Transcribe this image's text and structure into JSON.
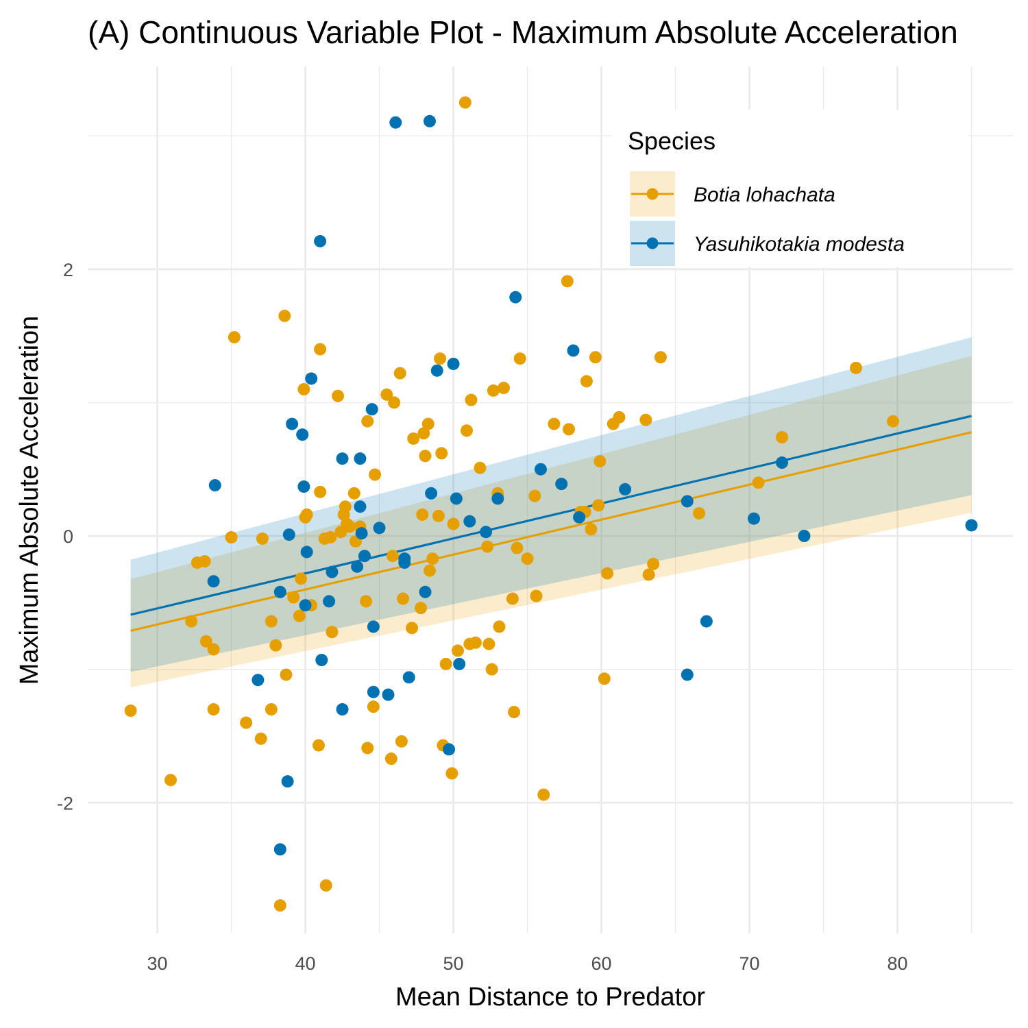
{
  "chart_data": {
    "type": "scatter",
    "title": "(A) Continuous Variable Plot - Maximum Absolute Acceleration",
    "xlabel": "Mean Distance to Predator",
    "ylabel": "Maximum Absolute Acceleration",
    "xlim": [
      25.3,
      87.8
    ],
    "ylim": [
      -2.98,
      3.52
    ],
    "x_ticks": [
      30,
      40,
      50,
      60,
      70,
      80
    ],
    "y_ticks": [
      -2,
      0,
      2
    ],
    "x_tick_labels": [
      "30",
      "40",
      "50",
      "60",
      "70",
      "80"
    ],
    "y_tick_labels": [
      "-2",
      "0",
      "2"
    ],
    "grid": true,
    "legend": {
      "title": "Species",
      "position": "top-right"
    },
    "series": [
      {
        "name": "Botia lohachata",
        "color": "#E69F00",
        "fit": {
          "x_range": [
            28.2,
            85
          ],
          "intercept": -1.45,
          "slope": 0.02621
        },
        "band": {
          "x": [
            28.2,
            85
          ],
          "lower": [
            -1.135,
            0.174
          ],
          "upper": [
            -0.324,
            1.35
          ]
        },
        "points": [
          [
            28.2,
            -1.31
          ],
          [
            30.9,
            -1.83
          ],
          [
            32.3,
            -0.64
          ],
          [
            32.7,
            -0.2
          ],
          [
            33.2,
            -0.19
          ],
          [
            33.3,
            -0.79
          ],
          [
            33.8,
            -0.85
          ],
          [
            33.8,
            -1.3
          ],
          [
            35.0,
            -0.01
          ],
          [
            35.2,
            1.49
          ],
          [
            36.0,
            -1.4
          ],
          [
            37.0,
            -1.52
          ],
          [
            37.1,
            -0.02
          ],
          [
            37.7,
            -0.64
          ],
          [
            37.7,
            -1.3
          ],
          [
            38.0,
            -0.82
          ],
          [
            38.3,
            -2.77
          ],
          [
            38.6,
            1.65
          ],
          [
            38.7,
            -1.04
          ],
          [
            39.2,
            -0.46
          ],
          [
            39.6,
            -0.6
          ],
          [
            39.7,
            -0.32
          ],
          [
            39.9,
            1.1
          ],
          [
            40.0,
            0.14
          ],
          [
            40.1,
            0.16
          ],
          [
            40.4,
            -0.52
          ],
          [
            40.9,
            -1.57
          ],
          [
            41.0,
            0.33
          ],
          [
            41.0,
            1.4
          ],
          [
            41.3,
            -0.02
          ],
          [
            41.4,
            -2.62
          ],
          [
            41.7,
            -0.01
          ],
          [
            41.8,
            -0.72
          ],
          [
            42.2,
            1.05
          ],
          [
            42.4,
            0.03
          ],
          [
            42.6,
            0.16
          ],
          [
            42.7,
            0.22
          ],
          [
            42.8,
            0.09
          ],
          [
            43.0,
            0.07
          ],
          [
            43.3,
            0.32
          ],
          [
            43.4,
            -0.04
          ],
          [
            43.7,
            0.07
          ],
          [
            44.1,
            -0.49
          ],
          [
            44.2,
            -1.59
          ],
          [
            44.2,
            0.86
          ],
          [
            44.6,
            -1.28
          ],
          [
            44.7,
            0.46
          ],
          [
            45.5,
            1.06
          ],
          [
            45.8,
            -1.67
          ],
          [
            45.9,
            -0.15
          ],
          [
            46.0,
            1.0
          ],
          [
            46.4,
            1.22
          ],
          [
            46.5,
            -1.54
          ],
          [
            46.6,
            -0.47
          ],
          [
            47.2,
            -0.69
          ],
          [
            47.3,
            0.73
          ],
          [
            47.8,
            -0.54
          ],
          [
            47.9,
            0.16
          ],
          [
            48.0,
            0.77
          ],
          [
            48.1,
            0.6
          ],
          [
            48.3,
            0.84
          ],
          [
            48.4,
            -0.26
          ],
          [
            48.6,
            -0.17
          ],
          [
            49.0,
            0.15
          ],
          [
            49.1,
            1.33
          ],
          [
            49.2,
            0.62
          ],
          [
            49.3,
            -1.57
          ],
          [
            49.5,
            -0.96
          ],
          [
            49.9,
            -1.78
          ],
          [
            50.0,
            0.09
          ],
          [
            50.3,
            -0.86
          ],
          [
            50.8,
            3.25
          ],
          [
            50.9,
            0.79
          ],
          [
            51.1,
            -0.81
          ],
          [
            51.2,
            1.02
          ],
          [
            51.5,
            -0.8
          ],
          [
            51.8,
            0.51
          ],
          [
            52.3,
            -0.08
          ],
          [
            52.4,
            -0.81
          ],
          [
            52.6,
            -1.0
          ],
          [
            52.7,
            1.09
          ],
          [
            53.0,
            0.32
          ],
          [
            53.1,
            -0.68
          ],
          [
            53.4,
            1.11
          ],
          [
            54.0,
            -0.47
          ],
          [
            54.1,
            -1.32
          ],
          [
            54.3,
            -0.09
          ],
          [
            54.5,
            1.33
          ],
          [
            55.0,
            -0.17
          ],
          [
            55.5,
            0.3
          ],
          [
            55.6,
            -0.45
          ],
          [
            56.1,
            -1.94
          ],
          [
            56.8,
            0.84
          ],
          [
            57.7,
            1.91
          ],
          [
            57.8,
            0.8
          ],
          [
            58.6,
            0.18
          ],
          [
            58.9,
            0.18
          ],
          [
            59.0,
            1.16
          ],
          [
            59.3,
            0.05
          ],
          [
            59.6,
            1.34
          ],
          [
            59.8,
            0.23
          ],
          [
            59.9,
            0.56
          ],
          [
            60.2,
            -1.07
          ],
          [
            60.4,
            -0.28
          ],
          [
            60.8,
            0.84
          ],
          [
            61.2,
            0.89
          ],
          [
            63.0,
            0.87
          ],
          [
            63.2,
            -0.29
          ],
          [
            63.5,
            -0.21
          ],
          [
            64.0,
            1.34
          ],
          [
            66.6,
            0.17
          ],
          [
            70.6,
            0.4
          ],
          [
            72.2,
            0.74
          ],
          [
            77.2,
            1.26
          ],
          [
            79.7,
            0.86
          ]
        ]
      },
      {
        "name": "Yasuhikotakia modesta",
        "color": "#0072B2",
        "fit": {
          "x_range": [
            28.2,
            85
          ],
          "intercept": -1.33,
          "slope": 0.02623
        },
        "band": {
          "x": [
            28.2,
            85
          ],
          "lower": [
            -1.02,
            0.306
          ],
          "upper": [
            -0.178,
            1.49
          ]
        },
        "points": [
          [
            33.8,
            -0.34
          ],
          [
            33.9,
            0.38
          ],
          [
            36.8,
            -1.08
          ],
          [
            38.3,
            -0.42
          ],
          [
            38.3,
            -2.35
          ],
          [
            38.8,
            -1.84
          ],
          [
            38.9,
            0.01
          ],
          [
            39.1,
            0.84
          ],
          [
            39.8,
            0.76
          ],
          [
            39.9,
            0.37
          ],
          [
            40.0,
            -0.52
          ],
          [
            40.1,
            -0.12
          ],
          [
            40.4,
            1.18
          ],
          [
            41.0,
            2.21
          ],
          [
            41.1,
            -0.93
          ],
          [
            41.6,
            -0.49
          ],
          [
            41.8,
            -0.27
          ],
          [
            42.5,
            -1.3
          ],
          [
            42.5,
            0.58
          ],
          [
            43.5,
            -0.23
          ],
          [
            43.7,
            0.58
          ],
          [
            43.7,
            0.22
          ],
          [
            43.8,
            0.02
          ],
          [
            44.0,
            -0.15
          ],
          [
            44.5,
            0.95
          ],
          [
            44.6,
            -1.17
          ],
          [
            44.6,
            -0.68
          ],
          [
            45.0,
            0.06
          ],
          [
            45.6,
            -1.19
          ],
          [
            46.1,
            3.1
          ],
          [
            46.7,
            -0.2
          ],
          [
            46.7,
            -0.17
          ],
          [
            47.0,
            -1.06
          ],
          [
            48.1,
            -0.42
          ],
          [
            48.4,
            3.11
          ],
          [
            48.5,
            0.32
          ],
          [
            48.9,
            1.24
          ],
          [
            49.7,
            -1.6
          ],
          [
            50.0,
            1.29
          ],
          [
            50.2,
            0.28
          ],
          [
            50.4,
            -0.96
          ],
          [
            51.1,
            0.11
          ],
          [
            52.2,
            0.03
          ],
          [
            53.0,
            0.28
          ],
          [
            54.2,
            1.79
          ],
          [
            55.9,
            0.5
          ],
          [
            57.3,
            0.39
          ],
          [
            58.1,
            1.39
          ],
          [
            58.5,
            0.14
          ],
          [
            61.6,
            0.35
          ],
          [
            65.8,
            0.26
          ],
          [
            65.8,
            -1.04
          ],
          [
            67.1,
            -0.64
          ],
          [
            70.3,
            0.13
          ],
          [
            72.2,
            0.55
          ],
          [
            73.7,
            0.0
          ],
          [
            85.0,
            0.08
          ]
        ]
      }
    ]
  }
}
